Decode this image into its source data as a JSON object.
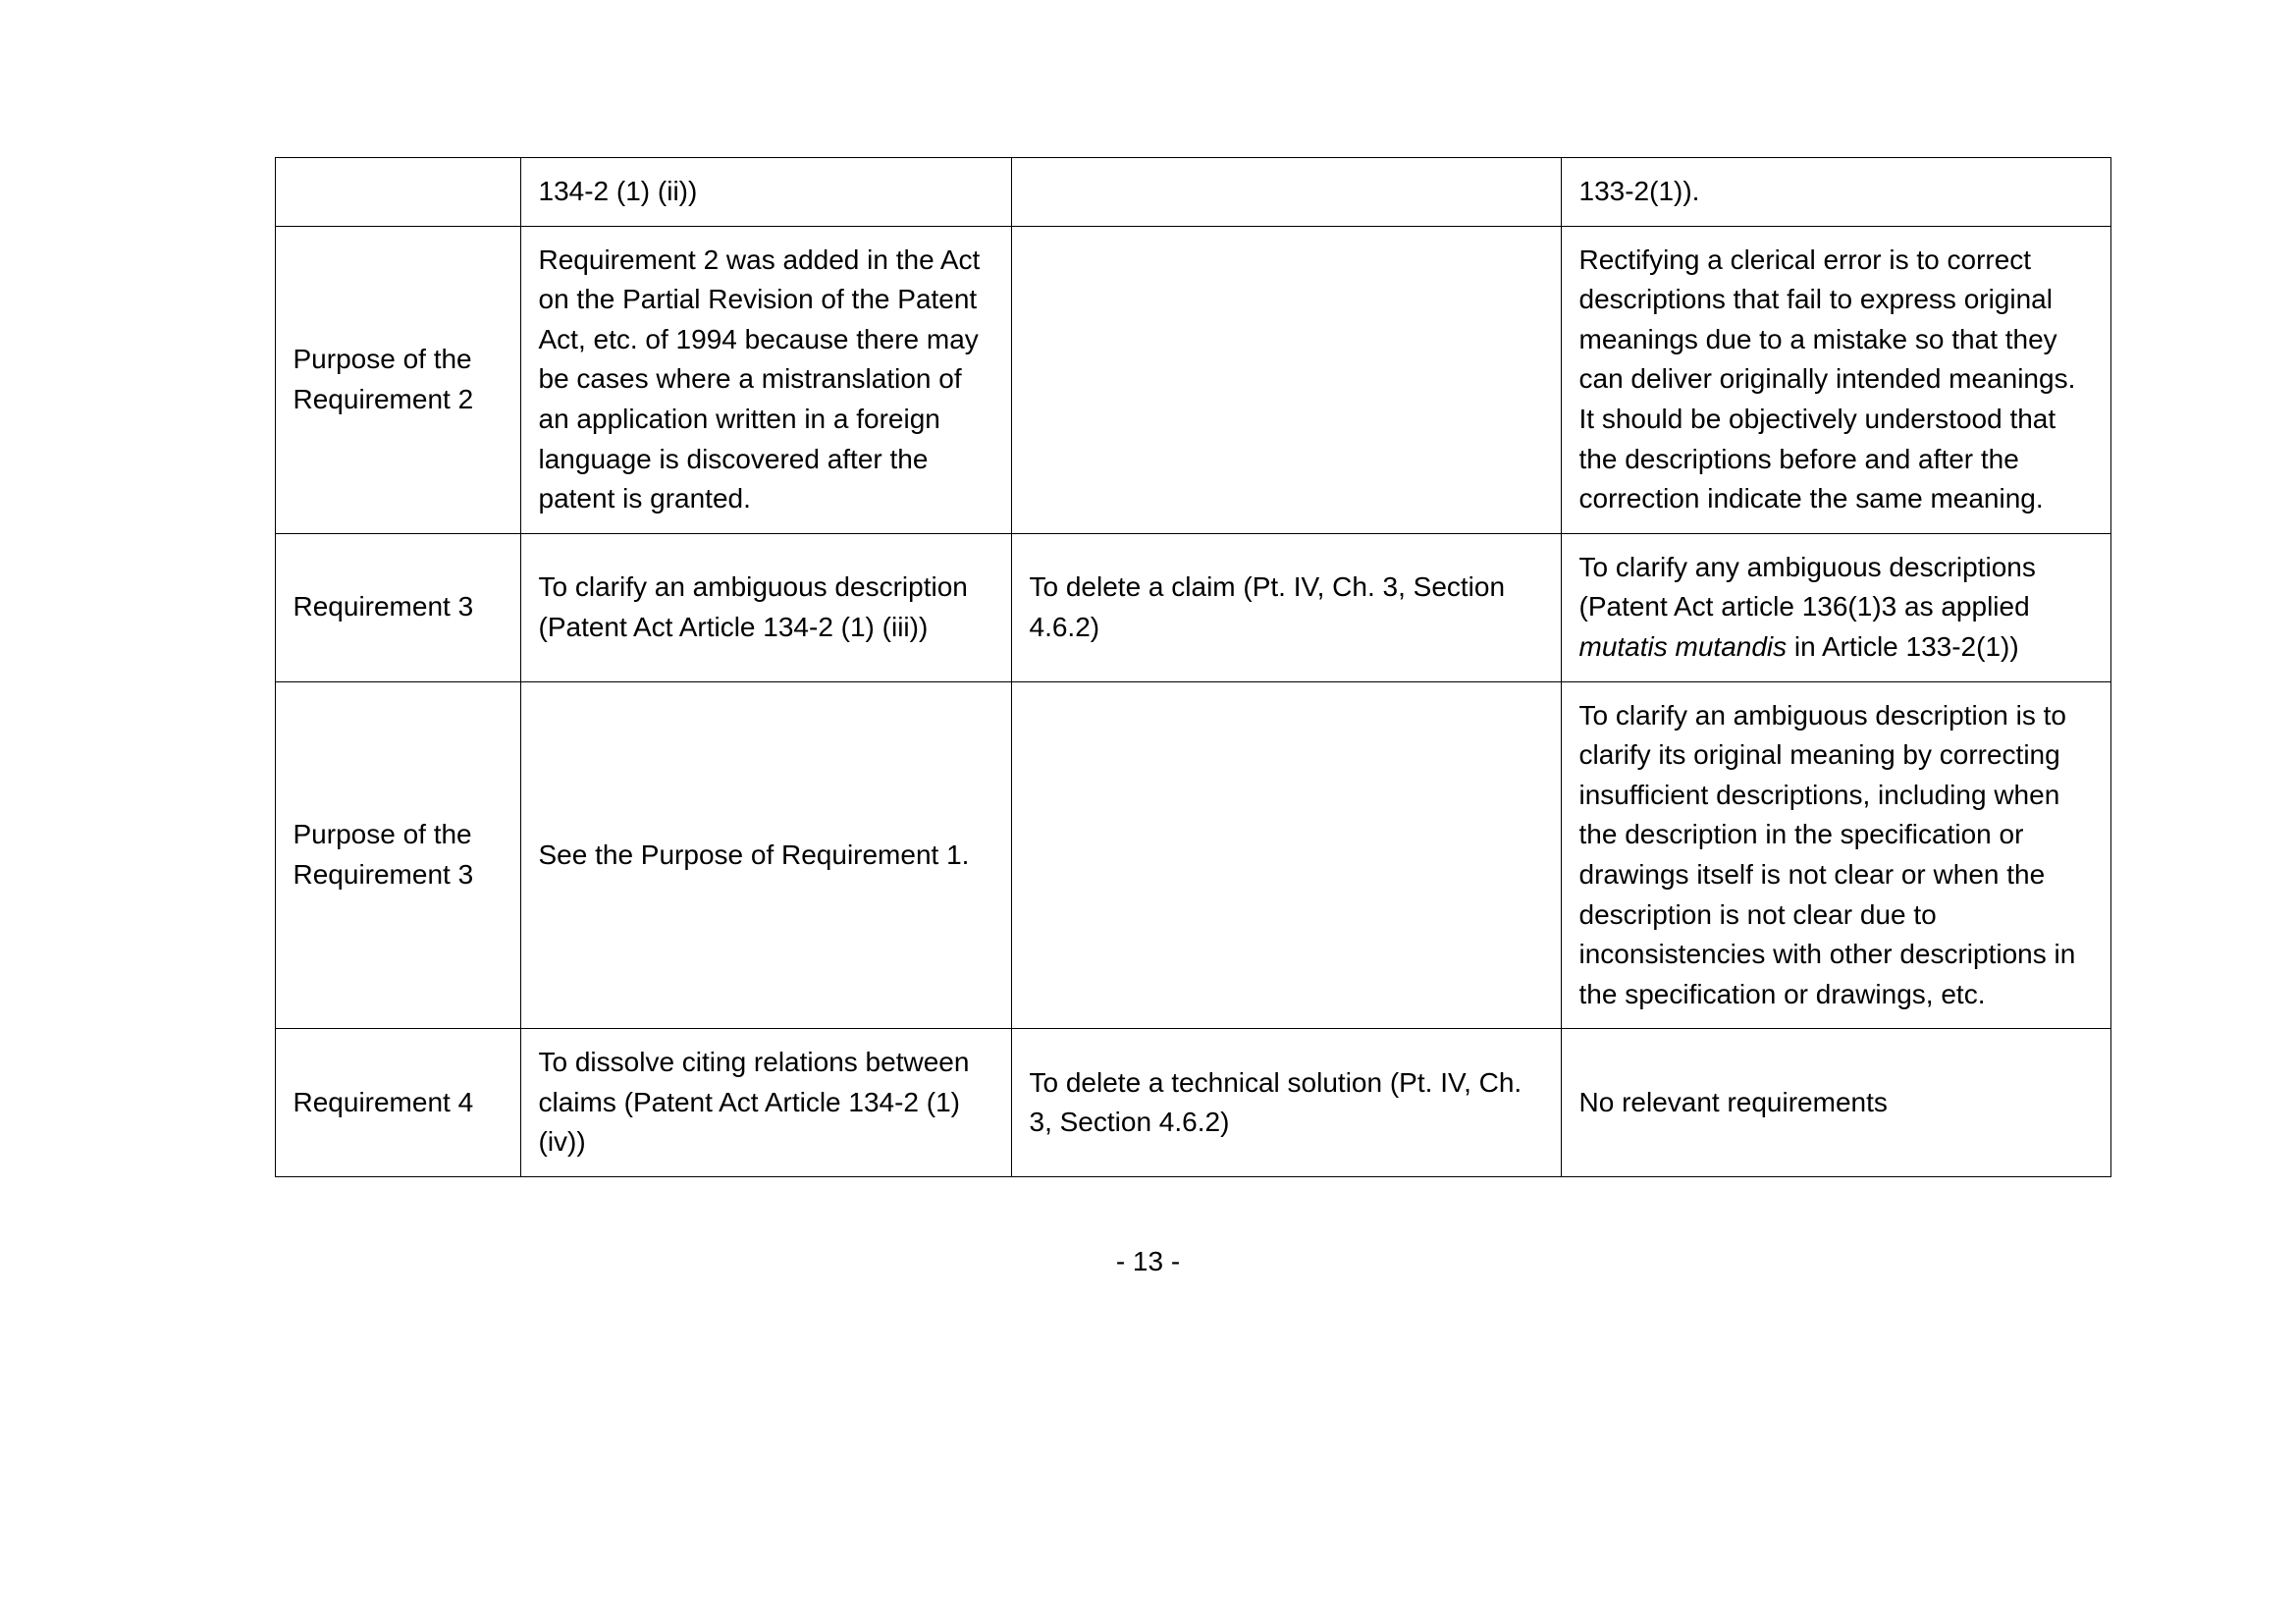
{
  "rows": [
    {
      "label": "",
      "col2": "134-2 (1) (ii))",
      "col3": "",
      "col4": "133-2(1))."
    },
    {
      "label": "Purpose of the Requirement 2",
      "col2": "Requirement 2 was added in the Act on the Partial Revision of the Patent Act, etc. of 1994 because there may be cases where a mistranslation of an application written in a foreign language is discovered after the patent is granted.",
      "col3": "",
      "col4": "Rectifying a clerical error is to correct descriptions that fail to express original meanings due to a mistake so that they can deliver originally intended meanings.\nIt should be objectively understood that the descriptions before and after the correction indicate the same meaning."
    },
    {
      "label": "Requirement 3",
      "col2": "To clarify an ambiguous description (Patent Act Article 134-2 (1) (iii))",
      "col3": "To delete a claim (Pt. IV, Ch. 3, Section 4.6.2)",
      "col4_pre": "To clarify any ambiguous descriptions\n(Patent Act article 136(1)3 as applied ",
      "col4_italic": "mutatis mutandis",
      "col4_post": " in Article 133-2(1))"
    },
    {
      "label": "Purpose of the Requirement 3",
      "col2": "See the Purpose of Requirement 1.",
      "col3": "",
      "col4": "To clarify an ambiguous description is to clarify its original meaning by correcting insufficient descriptions, including when the description in the specification or drawings itself is not clear or when the description is not clear due to inconsistencies with other descriptions in the specification or drawings, etc."
    },
    {
      "label": "Requirement 4",
      "col2": "To dissolve citing relations between claims (Patent Act Article 134-2 (1) (iv))",
      "col3": "To delete a technical solution (Pt. IV, Ch. 3, Section 4.6.2)",
      "col4": "No relevant requirements"
    }
  ],
  "pageNumber": "- 13 -",
  "fontSize": 28,
  "borderColor": "#000000",
  "background": "#ffffff",
  "textColor": "#000000"
}
